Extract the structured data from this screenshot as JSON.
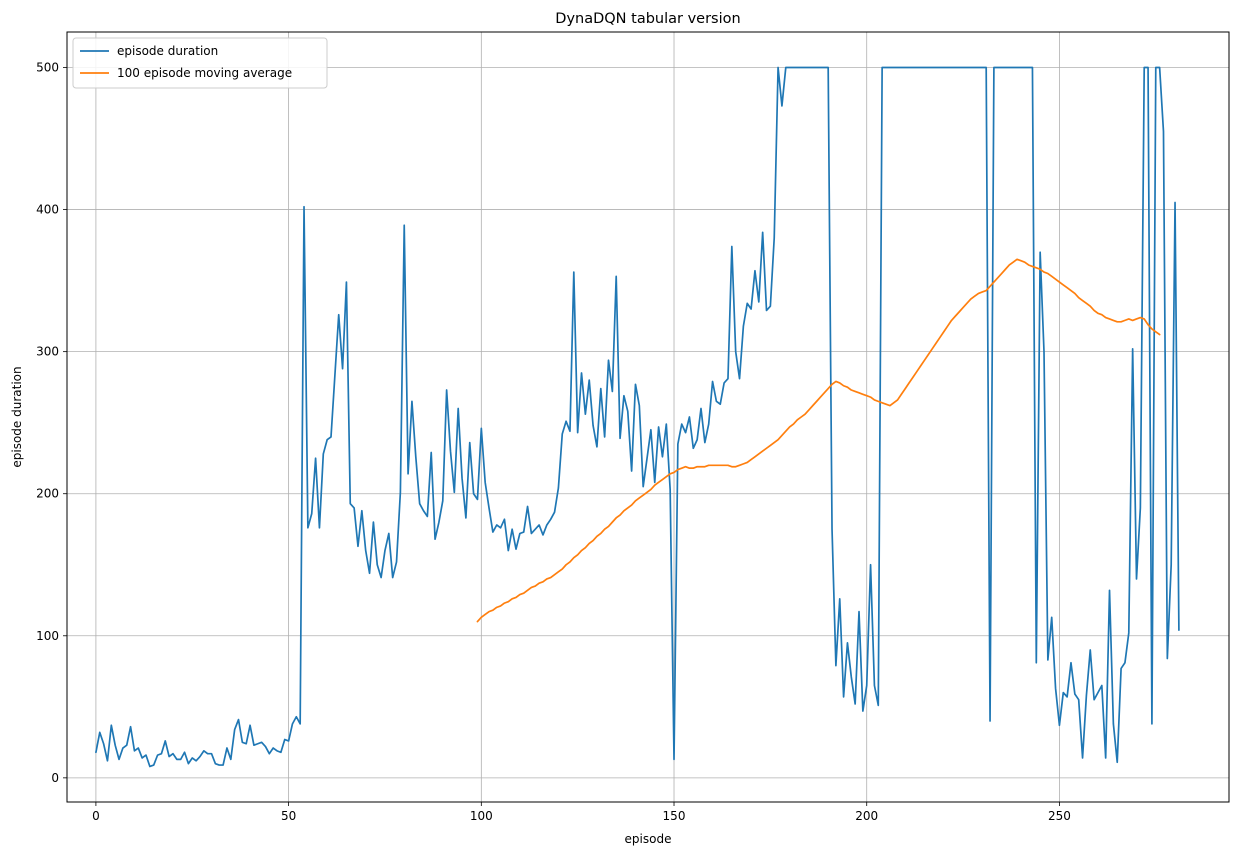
{
  "chart_data": {
    "type": "line",
    "title": "DynaDQN tabular version",
    "xlabel": "episode",
    "ylabel": "episode duration",
    "xlim": [
      -7.5,
      294
    ],
    "ylim": [
      -17,
      525
    ],
    "xticks": [
      0,
      50,
      100,
      150,
      200,
      250
    ],
    "yticks": [
      0,
      100,
      200,
      300,
      400,
      500
    ],
    "grid": true,
    "legend_position": "upper-left",
    "series": [
      {
        "name": "episode duration",
        "color": "#1f77b4",
        "x_start": 0,
        "values": [
          18,
          32,
          24,
          12,
          37,
          23,
          13,
          21,
          23,
          36,
          19,
          21,
          14,
          16,
          8,
          9,
          16,
          17,
          26,
          15,
          17,
          13,
          13,
          18,
          10,
          14,
          12,
          15,
          19,
          17,
          17,
          10,
          9,
          9,
          21,
          13,
          34,
          41,
          25,
          24,
          37,
          23,
          24,
          25,
          22,
          17,
          21,
          19,
          18,
          27,
          26,
          38,
          43,
          38,
          402,
          176,
          186,
          225,
          176,
          228,
          238,
          240,
          283,
          326,
          288,
          349,
          193,
          190,
          163,
          188,
          160,
          144,
          180,
          150,
          141,
          160,
          172,
          141,
          152,
          201,
          389,
          214,
          265,
          226,
          193,
          188,
          184,
          229,
          168,
          180,
          195,
          273,
          230,
          201,
          260,
          211,
          183,
          236,
          200,
          196,
          246,
          208,
          190,
          173,
          178,
          176,
          182,
          160,
          175,
          161,
          172,
          173,
          191,
          172,
          175,
          178,
          171,
          178,
          182,
          187,
          204,
          242,
          251,
          244,
          356,
          243,
          285,
          256,
          280,
          248,
          233,
          274,
          240,
          294,
          272,
          353,
          239,
          269,
          258,
          216,
          277,
          262,
          205,
          225,
          245,
          208,
          247,
          226,
          249,
          203,
          13,
          235,
          249,
          243,
          254,
          232,
          238,
          260,
          236,
          249,
          279,
          265,
          263,
          278,
          281,
          374,
          300,
          281,
          318,
          334,
          330,
          357,
          335,
          384,
          329,
          332,
          380,
          500,
          473,
          500,
          500,
          500,
          500,
          500,
          500,
          500,
          500,
          500,
          500,
          500,
          500,
          175,
          79,
          126,
          57,
          95,
          71,
          52,
          117,
          47,
          65,
          150,
          65,
          51,
          500,
          500,
          500,
          500,
          500,
          500,
          500,
          500,
          500,
          500,
          500,
          500,
          500,
          500,
          500,
          500,
          500,
          500,
          500,
          500,
          500,
          500,
          500,
          500,
          500,
          500,
          500,
          500,
          40,
          500,
          500,
          500,
          500,
          500,
          500,
          500,
          500,
          500,
          500,
          500,
          81,
          370,
          300,
          83,
          113,
          63,
          37,
          60,
          57,
          81,
          59,
          55,
          14,
          58,
          90,
          55,
          60,
          65,
          14,
          132,
          38,
          11,
          77,
          81,
          102,
          302,
          140,
          190,
          500,
          500,
          38,
          500,
          500,
          455,
          84,
          150,
          405,
          104
        ]
      },
      {
        "name": "100 episode moving average",
        "color": "#ff7f0e",
        "x_start": 99,
        "values": [
          110,
          113,
          115,
          117,
          118,
          120,
          121,
          123,
          124,
          126,
          127,
          129,
          130,
          132,
          134,
          135,
          137,
          138,
          140,
          141,
          143,
          145,
          147,
          150,
          152,
          155,
          157,
          160,
          162,
          165,
          167,
          170,
          172,
          175,
          177,
          180,
          183,
          185,
          188,
          190,
          192,
          195,
          197,
          199,
          201,
          203,
          206,
          208,
          210,
          212,
          214,
          215,
          217,
          218,
          219,
          218,
          218,
          219,
          219,
          219,
          220,
          220,
          220,
          220,
          220,
          220,
          219,
          219,
          220,
          221,
          222,
          224,
          226,
          228,
          230,
          232,
          234,
          236,
          238,
          241,
          244,
          247,
          249,
          252,
          254,
          256,
          259,
          262,
          265,
          268,
          271,
          274,
          277,
          279,
          278,
          276,
          275,
          273,
          272,
          271,
          270,
          269,
          268,
          266,
          265,
          264,
          263,
          262,
          264,
          266,
          270,
          274,
          278,
          282,
          286,
          290,
          294,
          298,
          302,
          306,
          310,
          314,
          318,
          322,
          325,
          328,
          331,
          334,
          337,
          339,
          341,
          342,
          343,
          346,
          349,
          352,
          355,
          358,
          361,
          363,
          365,
          364,
          363,
          361,
          360,
          359,
          358,
          356,
          355,
          353,
          351,
          349,
          347,
          345,
          343,
          341,
          338,
          336,
          334,
          332,
          329,
          327,
          326,
          324,
          323,
          322,
          321,
          321,
          322,
          323,
          322,
          323,
          324,
          323,
          319,
          316,
          314,
          312
        ]
      }
    ]
  }
}
